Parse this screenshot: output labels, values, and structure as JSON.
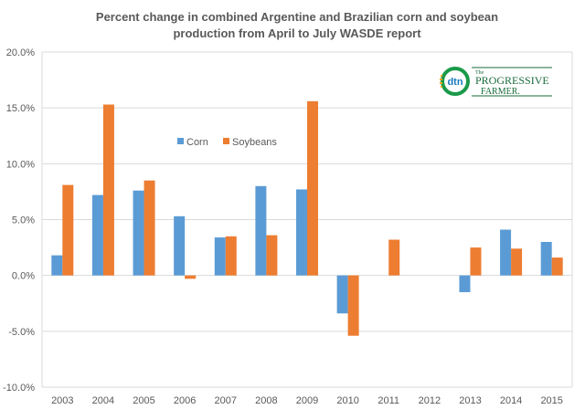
{
  "chart_data": {
    "type": "bar",
    "title": "Percent change in combined Argentine and Brazilian corn and soybean production from April to July WASDE  report",
    "title_lines": [
      "Percent change in combined Argentine and Brazilian corn and soybean",
      "production from April to July WASDE  report"
    ],
    "xlabel": "",
    "ylabel": "",
    "categories": [
      "2003",
      "2004",
      "2005",
      "2006",
      "2007",
      "2008",
      "2009",
      "2010",
      "2011",
      "2012",
      "2013",
      "2014",
      "2015"
    ],
    "series": [
      {
        "name": "Corn",
        "color": "#5b9bd5",
        "values": [
          1.8,
          7.2,
          7.6,
          5.3,
          3.4,
          8.0,
          7.7,
          -3.4,
          0.0,
          0.0,
          -1.5,
          4.1,
          3.0
        ]
      },
      {
        "name": "Soybeans",
        "color": "#ed7d31",
        "values": [
          8.1,
          15.3,
          8.5,
          -0.3,
          3.5,
          3.6,
          15.6,
          -5.4,
          3.2,
          0.0,
          2.5,
          2.4,
          1.6
        ]
      }
    ],
    "ylim": [
      -10,
      20
    ],
    "yticks": [
      -10,
      -5,
      0,
      5,
      10,
      15,
      20
    ],
    "ytick_labels": [
      "-10.0%",
      "-5.0%",
      "0.0%",
      "5.0%",
      "10.0%",
      "15.0%",
      "20.0%"
    ],
    "grid": true,
    "legend_position": "top-center"
  },
  "logo": {
    "mark": "dtn",
    "line1": "The",
    "line2": "PROGRESSIVE",
    "line3": "FARMER."
  }
}
